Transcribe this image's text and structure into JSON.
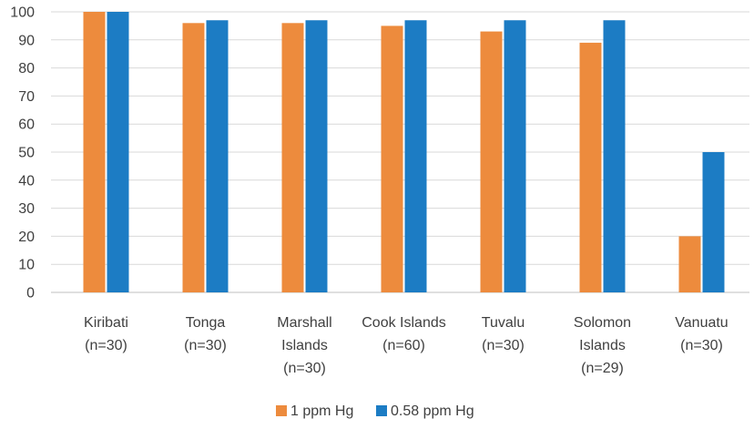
{
  "chart_data": {
    "type": "bar",
    "categories": [
      [
        "Kiribati",
        "(n=30)"
      ],
      [
        "Tonga",
        "(n=30)"
      ],
      [
        "Marshall",
        "Islands",
        "(n=30)"
      ],
      [
        "Cook Islands",
        "(n=60)"
      ],
      [
        "Tuvalu",
        "(n=30)"
      ],
      [
        "Solomon",
        "Islands",
        "(n=29)"
      ],
      [
        "Vanuatu",
        "(n=30)"
      ]
    ],
    "series": [
      {
        "name": "1 ppm Hg",
        "color": "#ED8B3D",
        "values": [
          100,
          96,
          96,
          95,
          93,
          89,
          20
        ]
      },
      {
        "name": "0.58 ppm Hg",
        "color": "#1C7CC4",
        "values": [
          100,
          97,
          97,
          97,
          97,
          97,
          50
        ]
      }
    ],
    "ylim": [
      0,
      100
    ],
    "yticks": [
      "0",
      "10",
      "20",
      "30",
      "40",
      "50",
      "60",
      "70",
      "80",
      "90",
      "100"
    ],
    "title": "",
    "xlabel": "",
    "ylabel": "",
    "grid": true,
    "legend": "bottom"
  }
}
